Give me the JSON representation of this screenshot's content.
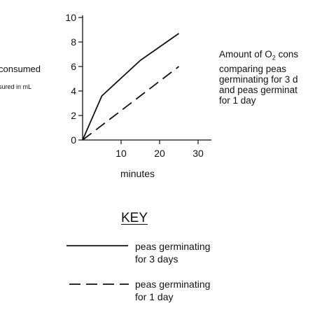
{
  "chart_data": {
    "type": "line",
    "title": "",
    "xlabel": "minutes",
    "ylabel": "consumed",
    "ylabel_note": "sured in mL",
    "xlim": [
      0,
      35
    ],
    "ylim": [
      0,
      10
    ],
    "x_ticks": [
      10,
      20,
      30
    ],
    "y_ticks": [
      0,
      2,
      4,
      6,
      8,
      10
    ],
    "grid": false,
    "annotation": {
      "line1_prefix": "Amount of O",
      "line1_sub": "2",
      "line1_suffix": " cons",
      "line2": "comparing peas",
      "line3": "germinating for 3 d",
      "line4": "and peas germinat",
      "line5": "for 1 day"
    },
    "legend": {
      "title": "KEY",
      "position": "bottom"
    },
    "series": [
      {
        "name": "peas germinating for 3 days",
        "name_line1": "peas germinating",
        "name_line2": "for 3 days",
        "style": "solid",
        "color": "#111111",
        "points": [
          [
            0,
            0
          ],
          [
            5,
            3.6
          ],
          [
            15,
            6.5
          ],
          [
            25,
            8.7
          ]
        ]
      },
      {
        "name": "peas germinating for 1 day",
        "name_line1": "peas germinating",
        "name_line2": "for 1 day",
        "style": "dashed",
        "color": "#111111",
        "points": [
          [
            0,
            0
          ],
          [
            25,
            6.0
          ]
        ]
      }
    ]
  }
}
